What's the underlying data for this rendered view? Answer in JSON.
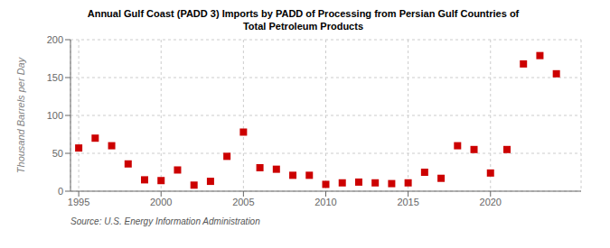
{
  "chart_data": {
    "type": "scatter",
    "title": "Annual Gulf Coast (PADD 3) Imports by PADD of Processing from Persian Gulf Countries of",
    "subtitle": "Total Petroleum Products",
    "y_label": "Thousand Barrels per Day",
    "annotations": [
      "Source: U.S. Energy Information Administration"
    ],
    "color": "#cc0000",
    "marker": "square",
    "grid": true,
    "xlim": [
      1994.5,
      2025.5
    ],
    "xticks": [
      1995,
      2000,
      2005,
      2010,
      2015,
      2020
    ],
    "ylim": [
      0,
      200
    ],
    "yticks": [
      0,
      50,
      100,
      150,
      200
    ],
    "x": [
      1995,
      1996,
      1997,
      1998,
      1999,
      2000,
      2001,
      2002,
      2003,
      2004,
      2005,
      2006,
      2007,
      2008,
      2009,
      2010,
      2011,
      2012,
      2013,
      2014,
      2015,
      2016,
      2017,
      2018,
      2019,
      2020,
      2021,
      2022,
      2023,
      2024
    ],
    "values": [
      57,
      70,
      60,
      36,
      15,
      14,
      28,
      8,
      13,
      46,
      78,
      31,
      29,
      21,
      21,
      9,
      11,
      12,
      11,
      10,
      11,
      25,
      17,
      60,
      55,
      24,
      55,
      168,
      179,
      155
    ]
  }
}
